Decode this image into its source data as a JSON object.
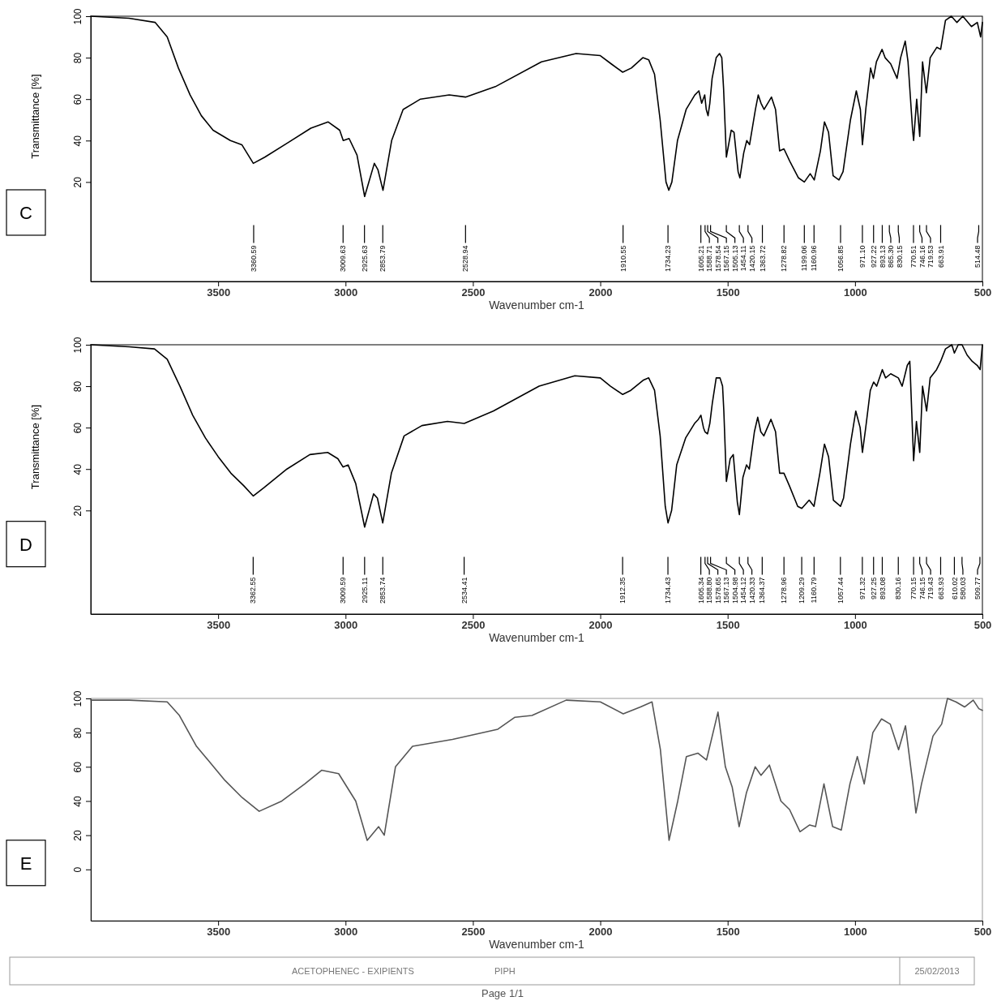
{
  "chart_data": [
    {
      "type": "line",
      "title": "C",
      "xlabel": "Wavenumber cm-1",
      "ylabel": "Transmittance [%]",
      "xlim": [
        4000,
        500
      ],
      "xticks": [
        3500,
        3000,
        2500,
        2000,
        1500,
        1000,
        500
      ],
      "ylim": [
        -28,
        100
      ],
      "yticks": [
        20,
        40,
        60,
        80,
        100
      ],
      "x": [
        4000,
        3850,
        3747,
        3700,
        3656,
        3610,
        3566,
        3520,
        3452,
        3407,
        3362,
        3317,
        3226,
        3136,
        3068,
        3023,
        3009,
        2986,
        2955,
        2925,
        2887,
        2873,
        2853,
        2819,
        2774,
        2706,
        2593,
        2529,
        2412,
        2231,
        2095,
        2000,
        1957,
        1912,
        1878,
        1833,
        1810,
        1787,
        1765,
        1742,
        1731,
        1719,
        1697,
        1663,
        1629,
        1613,
        1602,
        1590,
        1584,
        1577,
        1570,
        1561,
        1545,
        1532,
        1523,
        1516,
        1505,
        1486,
        1475,
        1459,
        1452,
        1437,
        1425,
        1414,
        1391,
        1380,
        1369,
        1357,
        1328,
        1312,
        1296,
        1279,
        1256,
        1222,
        1199,
        1176,
        1160,
        1136,
        1120,
        1104,
        1086,
        1063,
        1047,
        1018,
        995,
        979,
        971,
        957,
        939,
        928,
        916,
        894,
        882,
        860,
        835,
        821,
        803,
        792,
        774,
        770,
        758,
        746,
        735,
        720,
        705,
        679,
        664,
        645,
        622,
        600,
        577,
        543,
        520,
        507,
        500
      ],
      "series": [
        {
          "color": "#000000",
          "values": [
            100,
            99,
            97,
            90,
            75,
            62,
            52,
            45,
            40,
            38,
            29,
            32,
            39,
            46,
            49,
            45,
            40,
            41,
            33,
            13,
            29,
            26,
            16,
            40,
            55,
            60,
            62,
            61,
            66,
            78,
            82,
            81,
            77,
            73,
            75,
            80,
            79,
            72,
            50,
            20,
            16,
            20,
            40,
            55,
            62,
            64,
            58,
            62,
            55,
            52,
            58,
            70,
            80,
            82,
            80,
            65,
            32,
            45,
            44,
            25,
            22,
            34,
            40,
            38,
            55,
            62,
            58,
            55,
            61,
            55,
            35,
            36,
            30,
            22,
            20,
            24,
            21,
            35,
            49,
            44,
            23,
            21,
            25,
            50,
            64,
            55,
            38,
            56,
            75,
            70,
            78,
            84,
            80,
            77,
            70,
            80,
            88,
            78,
            45,
            40,
            60,
            42,
            78,
            63,
            80,
            85,
            84,
            98,
            100,
            97,
            100,
            95,
            97,
            90,
            97
          ]
        }
      ],
      "annotations": [
        {
          "text": "3360.59",
          "x": 3360.59
        },
        {
          "text": "3009.63",
          "x": 3009.63
        },
        {
          "text": "2925.63",
          "x": 2925.63
        },
        {
          "text": "2853.79",
          "x": 2853.79
        },
        {
          "text": "2528.94",
          "x": 2528.94
        },
        {
          "text": "1910.55",
          "x": 1910.55
        },
        {
          "text": "1734.23",
          "x": 1734.23
        },
        {
          "text": "1605.21",
          "x": 1605.21
        },
        {
          "text": "1588.71",
          "x": 1588.71
        },
        {
          "text": "1578.54",
          "x": 1578.54
        },
        {
          "text": "1567.15",
          "x": 1567.15
        },
        {
          "text": "1505.13",
          "x": 1505.13
        },
        {
          "text": "1454.11",
          "x": 1454.11
        },
        {
          "text": "1420.15",
          "x": 1420.15
        },
        {
          "text": "1363.72",
          "x": 1363.72
        },
        {
          "text": "1278.82",
          "x": 1278.82
        },
        {
          "text": "1199.06",
          "x": 1199.06
        },
        {
          "text": "1160.96",
          "x": 1160.96
        },
        {
          "text": "1056.85",
          "x": 1056.85
        },
        {
          "text": "971.10",
          "x": 971.1
        },
        {
          "text": "927.22",
          "x": 927.22
        },
        {
          "text": "893.13",
          "x": 893.13
        },
        {
          "text": "865.30",
          "x": 865.3
        },
        {
          "text": "830.15",
          "x": 830.15
        },
        {
          "text": "770.51",
          "x": 770.51
        },
        {
          "text": "746.16",
          "x": 746.16
        },
        {
          "text": "719.53",
          "x": 719.53
        },
        {
          "text": "663.91",
          "x": 663.91
        },
        {
          "text": "514.48",
          "x": 514.48
        }
      ]
    },
    {
      "type": "line",
      "title": "D",
      "xlabel": "Wavenumber cm-1",
      "ylabel": "Transmittance [%]",
      "xlim": [
        4000,
        500
      ],
      "xticks": [
        3500,
        3000,
        2500,
        2000,
        1500,
        1000,
        500
      ],
      "ylim": [
        -30,
        100
      ],
      "yticks": [
        20,
        40,
        60,
        80,
        100
      ],
      "x": [
        4000,
        3850,
        3750,
        3700,
        3650,
        3600,
        3550,
        3500,
        3450,
        3400,
        3362,
        3320,
        3230,
        3140,
        3070,
        3030,
        3010,
        2990,
        2960,
        2925,
        2890,
        2875,
        2854,
        2820,
        2770,
        2700,
        2600,
        2534,
        2420,
        2240,
        2100,
        2000,
        1960,
        1912,
        1880,
        1830,
        1810,
        1787,
        1765,
        1745,
        1734,
        1720,
        1700,
        1665,
        1630,
        1615,
        1605,
        1595,
        1589,
        1579,
        1570,
        1560,
        1545,
        1530,
        1520,
        1515,
        1505,
        1490,
        1478,
        1462,
        1454,
        1440,
        1426,
        1415,
        1395,
        1382,
        1370,
        1358,
        1330,
        1312,
        1296,
        1279,
        1258,
        1225,
        1209,
        1180,
        1161,
        1138,
        1120,
        1104,
        1085,
        1057,
        1045,
        1018,
        997,
        980,
        971,
        958,
        940,
        927,
        915,
        893,
        880,
        860,
        830,
        815,
        795,
        785,
        775,
        770,
        759,
        746,
        735,
        719,
        705,
        680,
        664,
        645,
        620,
        610,
        595,
        580,
        560,
        540,
        520,
        509,
        500
      ],
      "series": [
        {
          "color": "#000000",
          "values": [
            100,
            99,
            98,
            93,
            80,
            66,
            55,
            46,
            38,
            32,
            27,
            31,
            40,
            47,
            48,
            45,
            41,
            42,
            33,
            12,
            28,
            26,
            14,
            38,
            56,
            61,
            63,
            62,
            68,
            80,
            85,
            84,
            80,
            76,
            78,
            83,
            84,
            78,
            56,
            22,
            14,
            20,
            42,
            55,
            62,
            64,
            66,
            60,
            58,
            57,
            62,
            72,
            84,
            84,
            80,
            68,
            34,
            45,
            47,
            24,
            18,
            36,
            42,
            40,
            58,
            65,
            58,
            56,
            64,
            58,
            38,
            38,
            32,
            22,
            21,
            25,
            22,
            38,
            52,
            46,
            25,
            22,
            26,
            52,
            68,
            60,
            48,
            60,
            78,
            82,
            80,
            88,
            84,
            86,
            84,
            80,
            90,
            92,
            60,
            44,
            63,
            48,
            80,
            68,
            84,
            88,
            92,
            98,
            100,
            96,
            100,
            100,
            95,
            92,
            90,
            88,
            100
          ]
        }
      ],
      "annotations": [
        {
          "text": "3362.55",
          "x": 3362.55
        },
        {
          "text": "3009.59",
          "x": 3009.59
        },
        {
          "text": "2925.11",
          "x": 2925.11
        },
        {
          "text": "2853.74",
          "x": 2853.74
        },
        {
          "text": "2534.41",
          "x": 2534.41
        },
        {
          "text": "1912.35",
          "x": 1912.35
        },
        {
          "text": "1734.43",
          "x": 1734.43
        },
        {
          "text": "1605.34",
          "x": 1605.34
        },
        {
          "text": "1588.80",
          "x": 1588.8
        },
        {
          "text": "1578.65",
          "x": 1578.65
        },
        {
          "text": "1567.13",
          "x": 1567.13
        },
        {
          "text": "1504.98",
          "x": 1504.98
        },
        {
          "text": "1454.12",
          "x": 1454.12
        },
        {
          "text": "1420.33",
          "x": 1420.33
        },
        {
          "text": "1364.37",
          "x": 1364.37
        },
        {
          "text": "1278.96",
          "x": 1278.96
        },
        {
          "text": "1209.29",
          "x": 1209.29
        },
        {
          "text": "1160.79",
          "x": 1160.79
        },
        {
          "text": "1057.44",
          "x": 1057.44
        },
        {
          "text": "971.32",
          "x": 971.32
        },
        {
          "text": "927.25",
          "x": 927.25
        },
        {
          "text": "893.08",
          "x": 893.08
        },
        {
          "text": "830.16",
          "x": 830.16
        },
        {
          "text": "770.15",
          "x": 770.15
        },
        {
          "text": "746.15",
          "x": 746.15
        },
        {
          "text": "719.43",
          "x": 719.43
        },
        {
          "text": "663.93",
          "x": 663.93
        },
        {
          "text": "610.02",
          "x": 610.02
        },
        {
          "text": "580.03",
          "x": 580.03
        },
        {
          "text": "509.77",
          "x": 509.77
        }
      ]
    },
    {
      "type": "line",
      "title": "E",
      "xlabel": "Wavenumber cm-1",
      "xlim": [
        4000,
        500
      ],
      "xticks": [
        3500,
        3000,
        2500,
        2000,
        1500,
        1000,
        500
      ],
      "ylim": [
        -30,
        100
      ],
      "yticks": [
        0,
        20,
        40,
        60,
        80,
        100
      ],
      "x": [
        4000,
        3850,
        3700,
        3652,
        3585,
        3473,
        3406,
        3339,
        3250,
        3160,
        3094,
        3027,
        2960,
        2915,
        2870,
        2848,
        2804,
        2737,
        2580,
        2402,
        2335,
        2268,
        2134,
        2000,
        1910,
        1842,
        1797,
        1764,
        1730,
        1696,
        1662,
        1617,
        1583,
        1538,
        1509,
        1482,
        1455,
        1426,
        1392,
        1369,
        1336,
        1291,
        1257,
        1216,
        1178,
        1155,
        1122,
        1088,
        1054,
        1020,
        991,
        964,
        930,
        896,
        862,
        829,
        802,
        773,
        761,
        739,
        694,
        660,
        637,
        604,
        570,
        536,
        514,
        500
      ],
      "series": [
        {
          "color": "#555555",
          "values": [
            99,
            99,
            98,
            90,
            72,
            52,
            42,
            34,
            40,
            50,
            58,
            56,
            40,
            17,
            25,
            20,
            60,
            72,
            76,
            82,
            89,
            90,
            99,
            98,
            91,
            95,
            98,
            70,
            17,
            40,
            66,
            68,
            64,
            92,
            60,
            48,
            25,
            45,
            60,
            55,
            61,
            40,
            35,
            22,
            26,
            25,
            50,
            25,
            23,
            50,
            66,
            50,
            80,
            88,
            85,
            70,
            84,
            50,
            33,
            50,
            78,
            85,
            100,
            98,
            95,
            99,
            94,
            93
          ]
        }
      ],
      "annotations": [
        "ACETOPHENEC - EXIPIENTS",
        "PIPH",
        "25/02/2013",
        "Page 1/1"
      ]
    }
  ]
}
